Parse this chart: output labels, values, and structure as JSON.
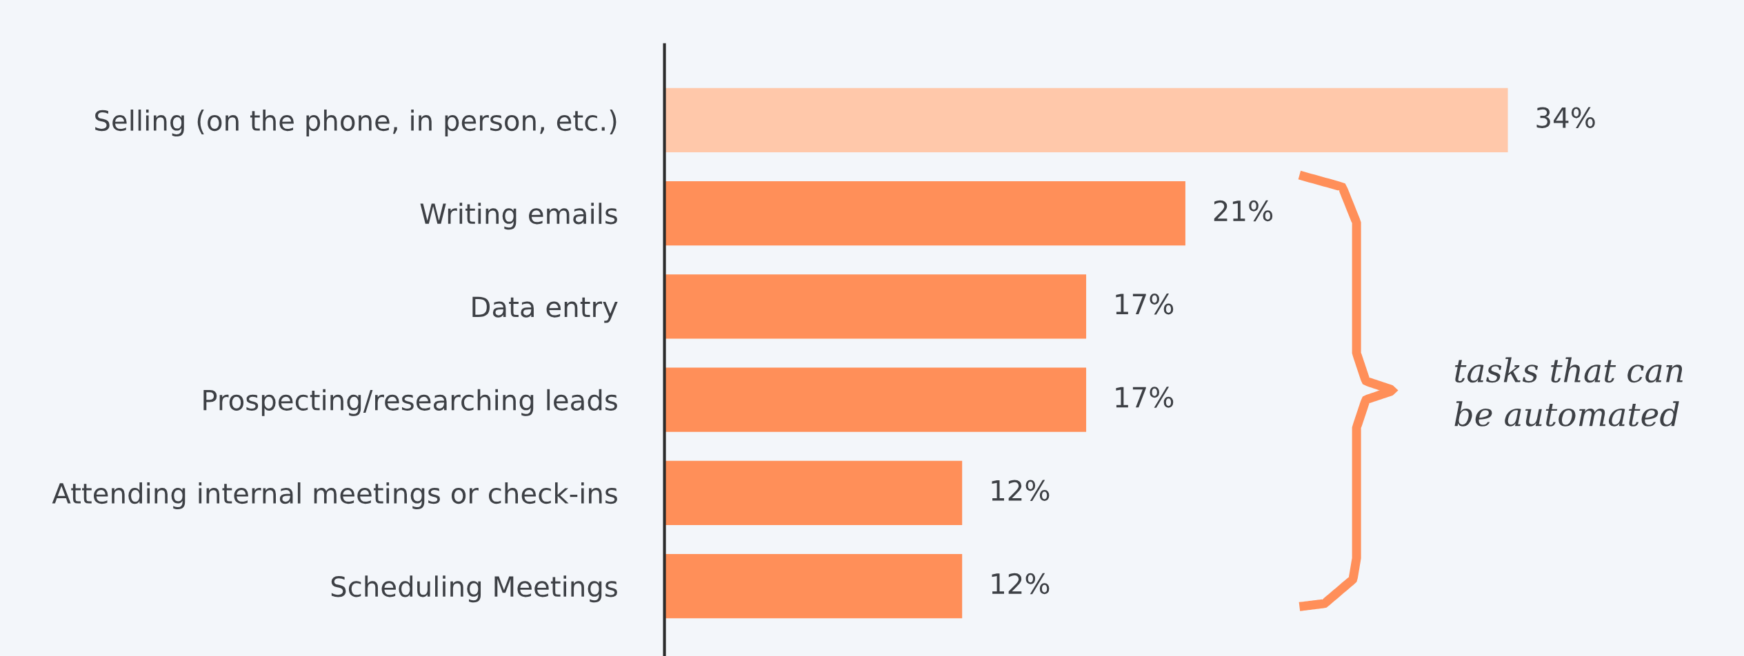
{
  "chart_data": {
    "type": "bar",
    "orientation": "horizontal",
    "categories": [
      "Selling (on the phone, in person, etc.)",
      "Writing emails",
      "Data entry",
      "Prospecting/researching leads",
      "Attending internal meetings or check-ins",
      "Scheduling Meetings"
    ],
    "values": [
      34,
      21,
      17,
      17,
      12,
      12
    ],
    "colors": [
      "#ffc8aa",
      "#ff8f59",
      "#ff8f59",
      "#ff8f59",
      "#ff8f59",
      "#ff8f59"
    ],
    "value_labels": [
      "34%",
      "21%",
      "17%",
      "17%",
      "12%",
      "12%"
    ],
    "annotations": [
      "tasks that can\nbe automated"
    ],
    "grid": false,
    "legend": false
  }
}
